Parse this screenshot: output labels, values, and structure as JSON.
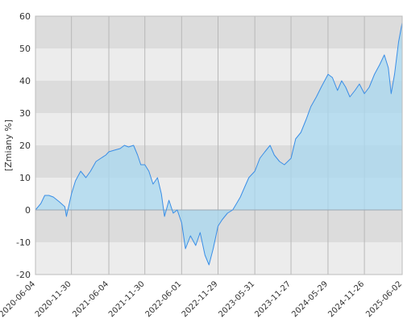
{
  "chart_data": {
    "type": "area",
    "title": "",
    "xlabel": "",
    "ylabel": "[Zmiany %]",
    "ylim": [
      -20,
      60
    ],
    "yticks": [
      -20,
      -10,
      0,
      10,
      20,
      30,
      40,
      50,
      60
    ],
    "xticks": [
      "2020-06-04",
      "2020-11-30",
      "2021-06-04",
      "2021-11-30",
      "2022-06-01",
      "2022-11-29",
      "2023-05-31",
      "2023-11-27",
      "2024-05-29",
      "2024-11-26",
      "2025-06-02"
    ],
    "grid": true,
    "legend": "none",
    "colors": {
      "line": "#3a8ee6",
      "fill": "#a8d8f0",
      "band_dark": "#dcdcdc",
      "band_light": "#ececec",
      "vgrid": "#b8b8b8",
      "zero_line": "#9aa7b3"
    },
    "series": [
      {
        "x": [
          "2020-06-04",
          "2020-07-01",
          "2020-07-20",
          "2020-08-10",
          "2020-09-01",
          "2020-10-01",
          "2020-10-28",
          "2020-11-05",
          "2020-11-30",
          "2020-12-20",
          "2021-01-15",
          "2021-02-10",
          "2021-03-05",
          "2021-04-01",
          "2021-04-25",
          "2021-05-20",
          "2021-06-04",
          "2021-07-01",
          "2021-07-30",
          "2021-08-20",
          "2021-09-10",
          "2021-10-05",
          "2021-10-25",
          "2021-11-10",
          "2021-11-30",
          "2021-12-20",
          "2022-01-10",
          "2022-02-01",
          "2022-02-20",
          "2022-03-08",
          "2022-03-30",
          "2022-04-20",
          "2022-05-10",
          "2022-06-01",
          "2022-06-20",
          "2022-07-15",
          "2022-08-10",
          "2022-09-01",
          "2022-09-25",
          "2022-10-15",
          "2022-11-05",
          "2022-11-29",
          "2022-12-20",
          "2023-01-15",
          "2023-02-10",
          "2023-03-01",
          "2023-03-20",
          "2023-04-10",
          "2023-05-01",
          "2023-05-31",
          "2023-06-25",
          "2023-07-20",
          "2023-08-15",
          "2023-09-05",
          "2023-10-01",
          "2023-10-25",
          "2023-11-27",
          "2023-12-20",
          "2024-01-15",
          "2024-02-10",
          "2024-03-05",
          "2024-04-01",
          "2024-04-25",
          "2024-05-29",
          "2024-06-20",
          "2024-07-15",
          "2024-08-05",
          "2024-08-25",
          "2024-09-15",
          "2024-10-10",
          "2024-11-01",
          "2024-11-26",
          "2024-12-20",
          "2025-01-15",
          "2025-02-10",
          "2025-03-05",
          "2025-03-25",
          "2025-04-08",
          "2025-04-25",
          "2025-05-15",
          "2025-06-02"
        ],
        "values": [
          0,
          2,
          4.5,
          4.5,
          4,
          2.5,
          1,
          -2,
          5,
          9,
          12,
          10,
          12,
          15,
          16,
          17,
          18,
          18.5,
          19,
          20,
          19.5,
          20,
          17,
          14,
          14,
          12,
          8,
          10,
          5,
          -2,
          3,
          -1,
          0,
          -4,
          -12,
          -8,
          -11,
          -7,
          -14,
          -17,
          -12,
          -5,
          -3,
          -1,
          0,
          2,
          4,
          7,
          10,
          12,
          16,
          18,
          20,
          17,
          15,
          14,
          16,
          22,
          24,
          28,
          32,
          35,
          38,
          42,
          41,
          37,
          40,
          38,
          35,
          37,
          39,
          36,
          38,
          42,
          45,
          48,
          44,
          36,
          42,
          52,
          58
        ]
      }
    ]
  }
}
